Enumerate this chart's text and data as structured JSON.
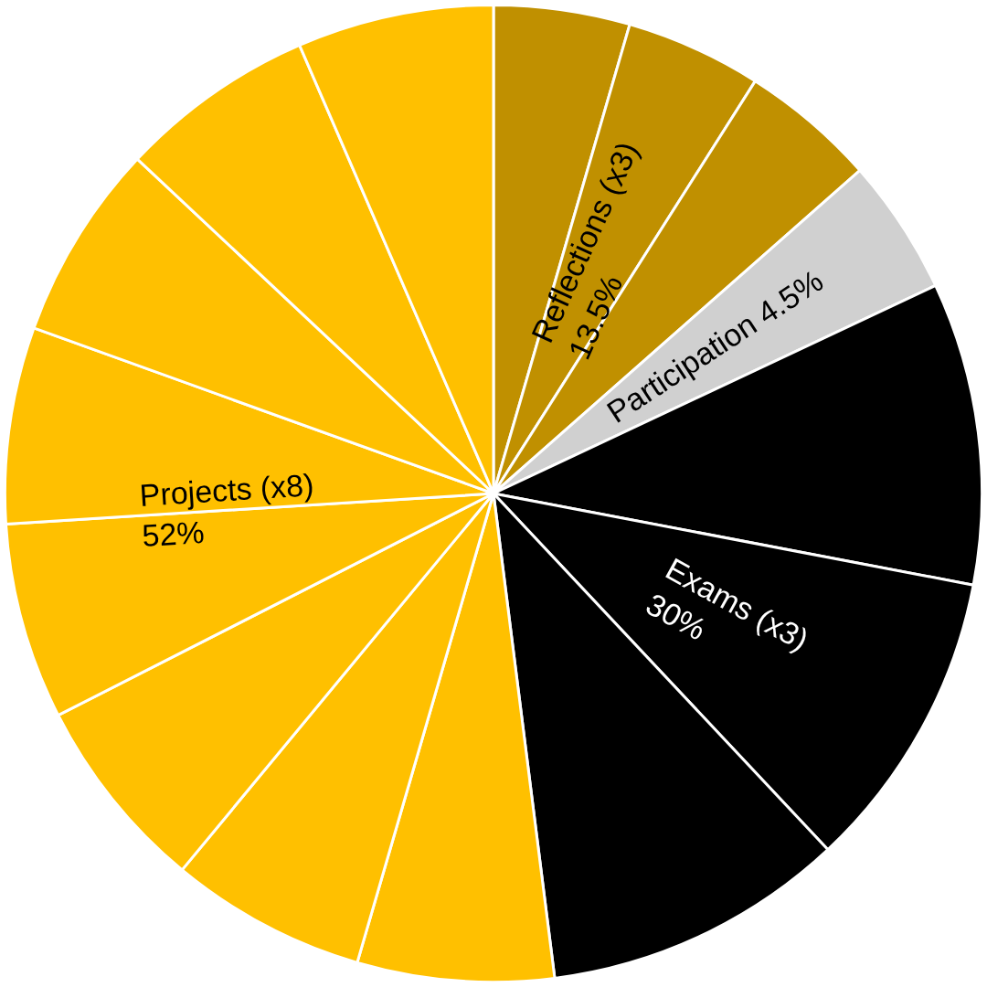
{
  "chart_data": {
    "type": "pie",
    "categories": [
      null,
      null,
      null,
      null,
      null,
      null,
      null,
      null,
      null,
      null,
      null,
      null,
      null,
      null,
      null
    ],
    "values": [
      4.5,
      4.5,
      4.5,
      4.5,
      10,
      10,
      10,
      6.5,
      6.5,
      6.5,
      6.5,
      6.5,
      6.5,
      6.5,
      6.5
    ],
    "colors": [
      "#c09000",
      "#c09000",
      "#c09000",
      "#d0d0d0",
      "#000000",
      "#000000",
      "#000000",
      "#ffc000",
      "#ffc000",
      "#ffc000",
      "#ffc000",
      "#ffc000",
      "#ffc000",
      "#ffc000",
      "#ffc000"
    ],
    "annotations": [
      "Reflections (x3)\n13.5%",
      "Participation 4.5%",
      "Exams (x3)\n30%",
      "Projects (x8)\n52%"
    ],
    "legend": false
  }
}
